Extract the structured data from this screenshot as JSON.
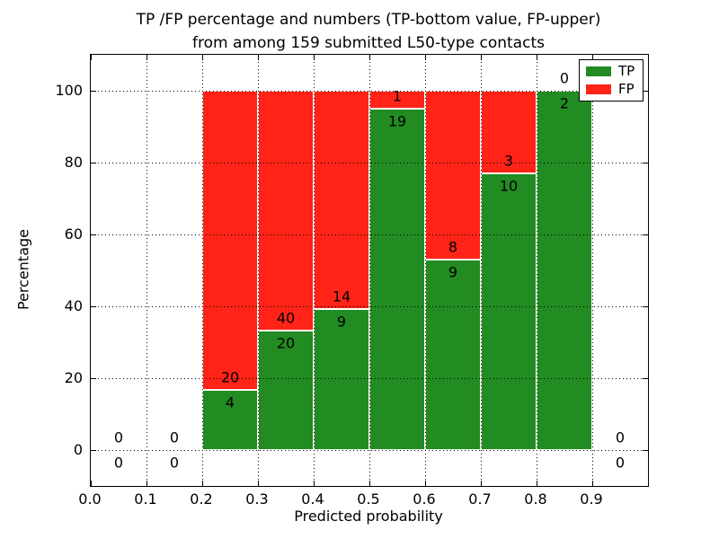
{
  "title": {
    "line1": "TP /FP percentage and numbers (TP-bottom value, FP-upper)",
    "line2": "from among 159 submitted L50-type contacts"
  },
  "chart_data": {
    "type": "bar",
    "stacked": true,
    "normalized": "each bar stacked to 100%",
    "total_submitted": 159,
    "xlabel": "Predicted probability",
    "ylabel": "Percentage",
    "xlim": [
      0.0,
      1.0
    ],
    "ylim": [
      -10,
      110
    ],
    "grid": "dotted, drawn above bars",
    "bin_edges": [
      0.0,
      0.1,
      0.2,
      0.3,
      0.4,
      0.5,
      0.6,
      0.7,
      0.8,
      0.9,
      1.0
    ],
    "bin_centers": [
      0.05,
      0.15,
      0.25,
      0.35,
      0.45,
      0.55,
      0.65,
      0.75,
      0.85,
      0.95
    ],
    "series": [
      {
        "name": "TP",
        "color": "#228b22",
        "counts": [
          0,
          0,
          4,
          20,
          9,
          19,
          9,
          10,
          2,
          0
        ]
      },
      {
        "name": "FP",
        "color": "#ff2318",
        "counts": [
          0,
          0,
          20,
          40,
          14,
          1,
          8,
          3,
          0,
          0
        ]
      }
    ],
    "tp_percent": [
      0,
      0,
      16.67,
      33.33,
      39.13,
      95.0,
      52.94,
      76.92,
      100.0,
      0
    ],
    "fp_percent": [
      0,
      0,
      83.33,
      66.67,
      60.87,
      5.0,
      47.06,
      23.08,
      0.0,
      0
    ],
    "xticks": [
      "0.0",
      "0.1",
      "0.2",
      "0.3",
      "0.4",
      "0.5",
      "0.6",
      "0.7",
      "0.8",
      "0.9"
    ],
    "yticks": [
      "0",
      "20",
      "40",
      "60",
      "80",
      "100"
    ],
    "ytick_values": [
      0,
      20,
      40,
      60,
      80,
      100
    ],
    "xtick_values": [
      0.0,
      0.1,
      0.2,
      0.3,
      0.4,
      0.5,
      0.6,
      0.7,
      0.8,
      0.9
    ],
    "legend": {
      "position": "upper right",
      "entries": [
        {
          "label": "TP",
          "color": "#228b22"
        },
        {
          "label": "FP",
          "color": "#ff2318"
        }
      ]
    },
    "axis_color": "#000000",
    "background_color": "#ffffff",
    "label_color": "#000000"
  }
}
